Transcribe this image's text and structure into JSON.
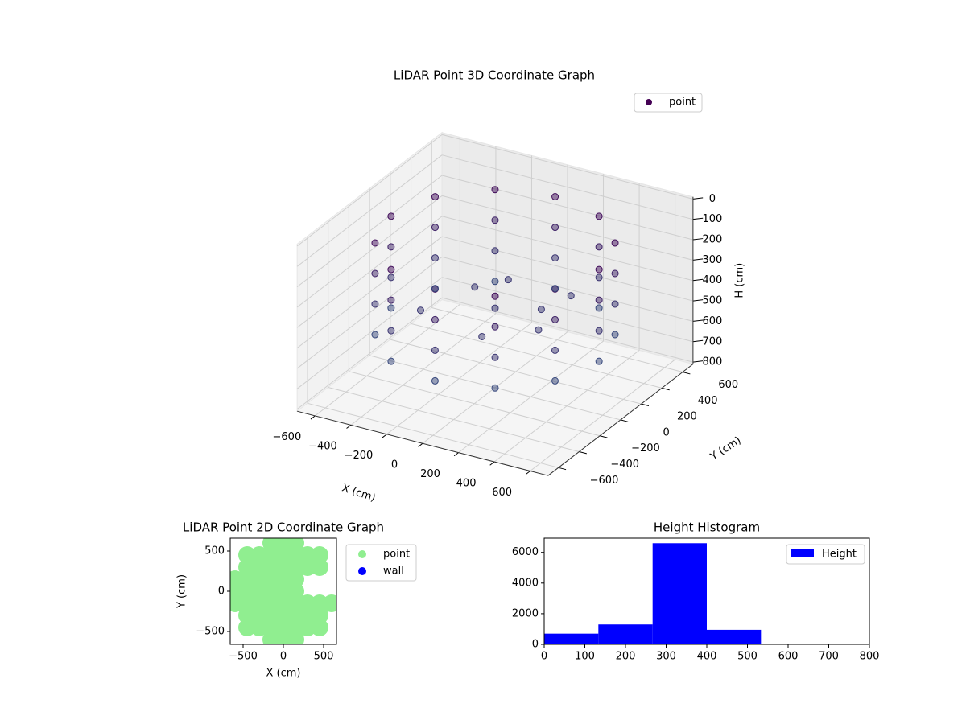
{
  "chart_data": [
    {
      "type": "scatter3d",
      "title": "LiDAR Point 3D Coordinate Graph",
      "xlabel": "X (cm)",
      "ylabel": "Y (cm)",
      "zlabel": "H (cm)",
      "xlim": [
        -700,
        700
      ],
      "ylim": [
        -700,
        700
      ],
      "zlim": [
        810,
        -10
      ],
      "xticks": [
        {
          "value": -600,
          "label": "−600"
        },
        {
          "value": -400,
          "label": "−400"
        },
        {
          "value": -200,
          "label": "−200"
        },
        0,
        200,
        400,
        600
      ],
      "yticks": [
        {
          "value": -600,
          "label": "−600"
        },
        {
          "value": -400,
          "label": "−400"
        },
        {
          "value": -200,
          "label": "−200"
        },
        0,
        200,
        400,
        600
      ],
      "zticks": [
        0,
        100,
        200,
        300,
        400,
        500,
        600,
        700,
        800
      ],
      "grid": true,
      "legend": "upper right",
      "colormap": [
        "#440154",
        "#31688e"
      ],
      "alpha": 0.5,
      "series": [
        {
          "name": "point",
          "color": "#440154",
          "x": [
            580,
            502,
            290,
            0,
            -290,
            -502,
            -580,
            -502,
            -290,
            0,
            290,
            502,
            580,
            502,
            290,
            0,
            -290,
            -502,
            -580,
            -502,
            -290,
            0,
            290,
            502,
            580,
            502,
            290,
            0,
            -290,
            -502,
            -580,
            -502,
            -290,
            0,
            290,
            502,
            580,
            502,
            290,
            0,
            -290,
            -502,
            -580,
            -502,
            -290,
            0,
            290,
            502,
            0,
            200,
            -200,
            -300,
            100,
            300,
            -100,
            250
          ],
          "y": [
            0,
            290,
            502,
            580,
            502,
            290,
            0,
            -290,
            -502,
            -580,
            -502,
            -290,
            0,
            290,
            502,
            580,
            502,
            290,
            0,
            -290,
            -502,
            -580,
            -502,
            -290,
            0,
            290,
            502,
            580,
            502,
            290,
            0,
            -290,
            -502,
            -580,
            -502,
            -290,
            0,
            290,
            502,
            580,
            502,
            290,
            0,
            -290,
            -502,
            -580,
            -502,
            -290,
            0,
            100,
            150,
            -200,
            -300,
            -100,
            300,
            300
          ],
          "h": [
            100,
            100,
            100,
            100,
            100,
            100,
            100,
            100,
            100,
            100,
            100,
            100,
            250,
            250,
            250,
            250,
            250,
            250,
            250,
            250,
            250,
            250,
            250,
            250,
            400,
            400,
            400,
            400,
            400,
            400,
            400,
            400,
            400,
            400,
            400,
            400,
            550,
            550,
            550,
            550,
            550,
            550,
            550,
            550,
            550,
            550,
            550,
            550,
            420,
            420,
            420,
            420,
            420,
            420,
            420,
            420
          ]
        }
      ]
    },
    {
      "type": "scatter",
      "title": "LiDAR Point 2D Coordinate Graph",
      "xlabel": "X (cm)",
      "ylabel": "Y (cm)",
      "xlim": [
        -660,
        660
      ],
      "ylim": [
        -660,
        660
      ],
      "xticks": [
        {
          "value": -500,
          "label": "−500"
        },
        0,
        500
      ],
      "yticks": [
        {
          "value": -500,
          "label": "−500"
        },
        0,
        500
      ],
      "legend": "outside upper right",
      "series": [
        {
          "name": "point",
          "color": "#90ee90",
          "x": [
            -600,
            -600,
            -600,
            -450,
            -450,
            -450,
            -450,
            -450,
            -450,
            -450,
            -300,
            -300,
            -300,
            -300,
            -300,
            -300,
            -300,
            -150,
            -150,
            -150,
            -150,
            -150,
            -150,
            -150,
            -150,
            -150,
            0,
            0,
            0,
            0,
            0,
            0,
            0,
            0,
            0,
            150,
            150,
            150,
            150,
            150,
            150,
            150,
            150,
            150,
            300,
            300,
            300,
            300,
            300,
            450,
            450,
            450,
            450,
            450,
            600
          ],
          "y": [
            -150,
            0,
            150,
            -450,
            -300,
            -150,
            0,
            150,
            300,
            450,
            -450,
            -300,
            -150,
            0,
            150,
            300,
            450,
            -600,
            -450,
            -300,
            -150,
            0,
            150,
            300,
            450,
            600,
            -600,
            -450,
            -300,
            -150,
            0,
            150,
            300,
            450,
            600,
            -600,
            -450,
            -300,
            -150,
            0,
            150,
            300,
            450,
            600,
            -450,
            -300,
            -150,
            300,
            450,
            -450,
            -300,
            -150,
            300,
            450,
            -150
          ]
        },
        {
          "name": "wall",
          "color": "#0000ff",
          "x": [],
          "y": []
        }
      ]
    },
    {
      "type": "histogram",
      "title": "Height Histogram",
      "bins": [
        0,
        133.3,
        266.7,
        400,
        533.3,
        666.7,
        800
      ],
      "counts": [
        700,
        1300,
        6600,
        950,
        10,
        5
      ],
      "series_name": "Height",
      "color": "#0000ff",
      "legend": "upper right",
      "xlim": [
        0,
        800
      ],
      "ylim": [
        0,
        6930
      ],
      "xticks": [
        0,
        100,
        200,
        300,
        400,
        500,
        600,
        700,
        800
      ],
      "yticks": [
        0,
        2000,
        4000,
        6000
      ]
    }
  ]
}
